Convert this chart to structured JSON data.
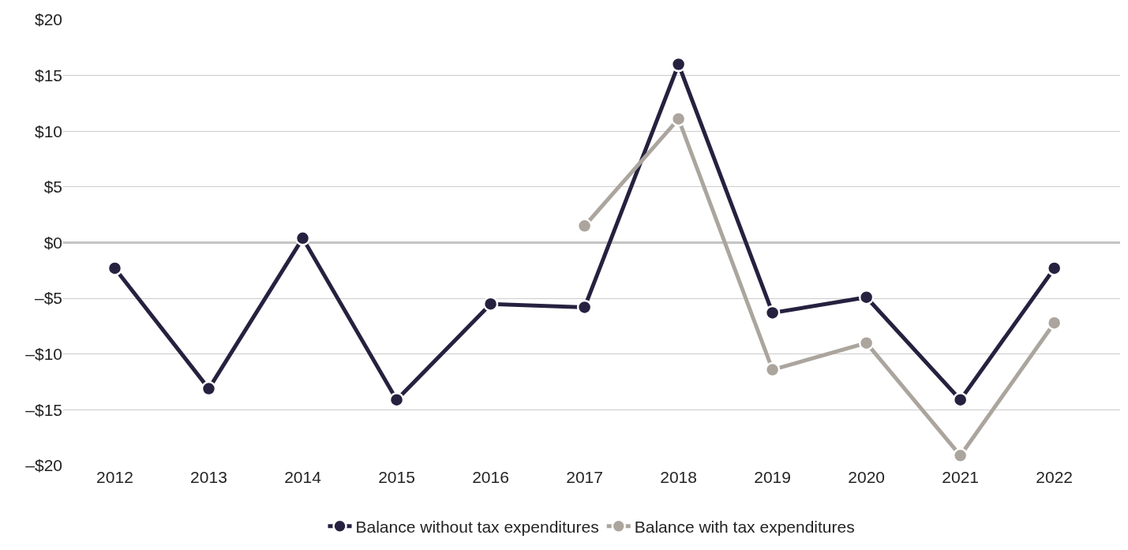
{
  "chart_data": {
    "type": "line",
    "categories": [
      "2012",
      "2013",
      "2014",
      "2015",
      "2016",
      "2017",
      "2018",
      "2019",
      "2020",
      "2021",
      "2022"
    ],
    "series": [
      {
        "name": "Balance without tax expenditures",
        "color": "#25213f",
        "values": [
          -2.3,
          -13.1,
          0.4,
          -14.1,
          -5.5,
          -5.8,
          16.0,
          -6.3,
          -4.9,
          -14.1,
          -2.3
        ]
      },
      {
        "name": "Balance with tax expenditures",
        "color": "#aba59e",
        "values": [
          null,
          null,
          null,
          null,
          null,
          1.5,
          11.1,
          -11.4,
          -9.0,
          -19.1,
          -7.2
        ]
      }
    ],
    "ylim": [
      -20,
      20
    ],
    "yticks": [
      {
        "value": -20,
        "label": "–$20"
      },
      {
        "value": -15,
        "label": "–$15"
      },
      {
        "value": -10,
        "label": "–$10"
      },
      {
        "value": -5,
        "label": "–$5"
      },
      {
        "value": 0,
        "label": "$0"
      },
      {
        "value": 5,
        "label": "$5"
      },
      {
        "value": 10,
        "label": "$10"
      },
      {
        "value": 15,
        "label": "$15"
      },
      {
        "value": 20,
        "label": "$20"
      }
    ],
    "ref_lines": [
      {
        "axis": "y",
        "value": 0,
        "color": "#000000"
      }
    ],
    "grid": "y",
    "legend": "bottom",
    "marker": "circle",
    "line_style": "solid"
  }
}
